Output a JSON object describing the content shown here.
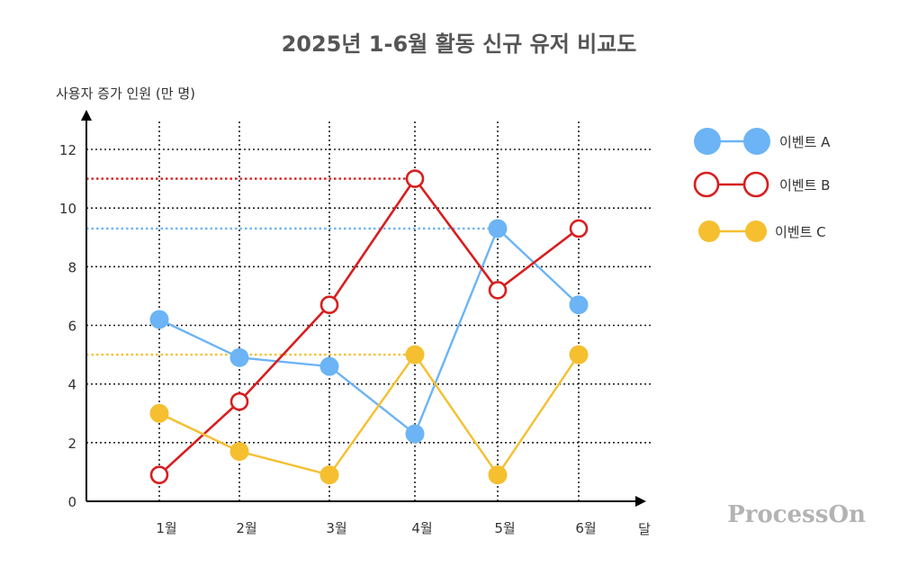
{
  "chart_data": {
    "type": "line",
    "title": "2025년 1-6월 활동 신규 유저 비교도",
    "ylabel": "사용자 증가 인원 (만 명)",
    "xlabel": "달",
    "categories": [
      "1월",
      "2월",
      "3월",
      "4월",
      "5월",
      "6월"
    ],
    "ylim": [
      0,
      12
    ],
    "yticks": [
      0,
      2,
      4,
      6,
      8,
      10,
      12
    ],
    "grid": true,
    "legend_position": "right",
    "series": [
      {
        "name": "이벤트 A",
        "values": [
          6.2,
          4.9,
          4.6,
          2.3,
          9.3,
          6.7
        ],
        "color": "#6cb4f5",
        "marker": "filled"
      },
      {
        "name": "이벤트 B",
        "values": [
          0.9,
          3.4,
          6.7,
          11.0,
          7.2,
          9.3
        ],
        "color": "#d81e1e",
        "marker": "hollow"
      },
      {
        "name": "이벤트 C",
        "values": [
          3.0,
          1.7,
          0.9,
          5.0,
          0.9,
          5.0
        ],
        "color": "#f5bf2f",
        "marker": "filled"
      }
    ],
    "reference_lines": [
      {
        "series": "이벤트 B",
        "value": 11.0
      },
      {
        "series": "이벤트 A",
        "value": 9.3
      },
      {
        "series": "이벤트 C",
        "value": 5.0
      }
    ]
  },
  "watermark": "ProcessOn"
}
